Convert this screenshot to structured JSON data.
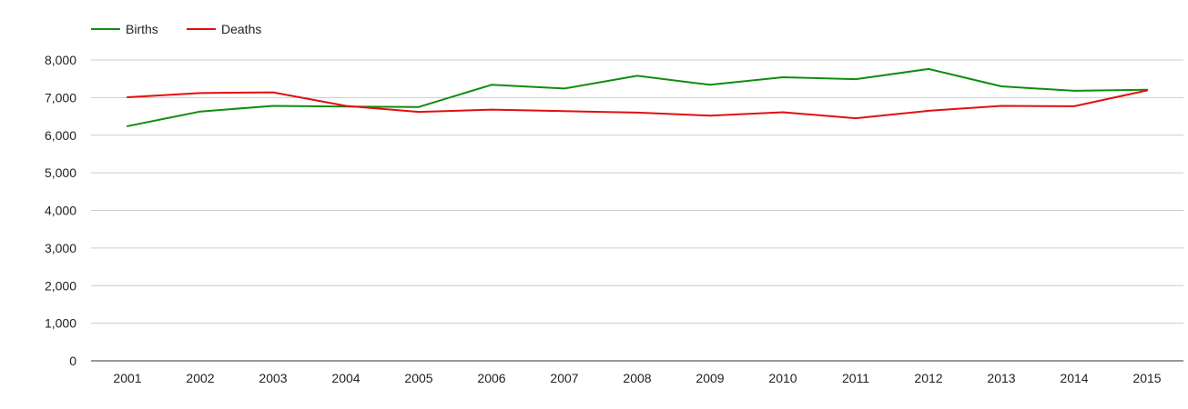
{
  "chart_data": {
    "type": "line",
    "title": "",
    "xlabel": "",
    "ylabel": "",
    "x": [
      "2001",
      "2002",
      "2003",
      "2004",
      "2005",
      "2006",
      "2007",
      "2008",
      "2009",
      "2010",
      "2011",
      "2012",
      "2013",
      "2014",
      "2015"
    ],
    "ylim": [
      0,
      8000
    ],
    "yticks": [
      0,
      1000,
      2000,
      3000,
      4000,
      5000,
      6000,
      7000,
      8000
    ],
    "ytick_labels": [
      "0",
      "1,000",
      "2,000",
      "3,000",
      "4,000",
      "5,000",
      "6,000",
      "7,000",
      "8,000"
    ],
    "grid": true,
    "legend_position": "top-left",
    "series": [
      {
        "name": "Births",
        "color": "#108c10",
        "values": [
          6240,
          6630,
          6780,
          6760,
          6750,
          7340,
          7240,
          7580,
          7340,
          7540,
          7490,
          7760,
          7300,
          7180,
          7210
        ]
      },
      {
        "name": "Deaths",
        "color": "#e01010",
        "values": [
          7010,
          7120,
          7140,
          6780,
          6620,
          6680,
          6640,
          6600,
          6520,
          6610,
          6450,
          6650,
          6780,
          6770,
          7190
        ]
      }
    ]
  }
}
